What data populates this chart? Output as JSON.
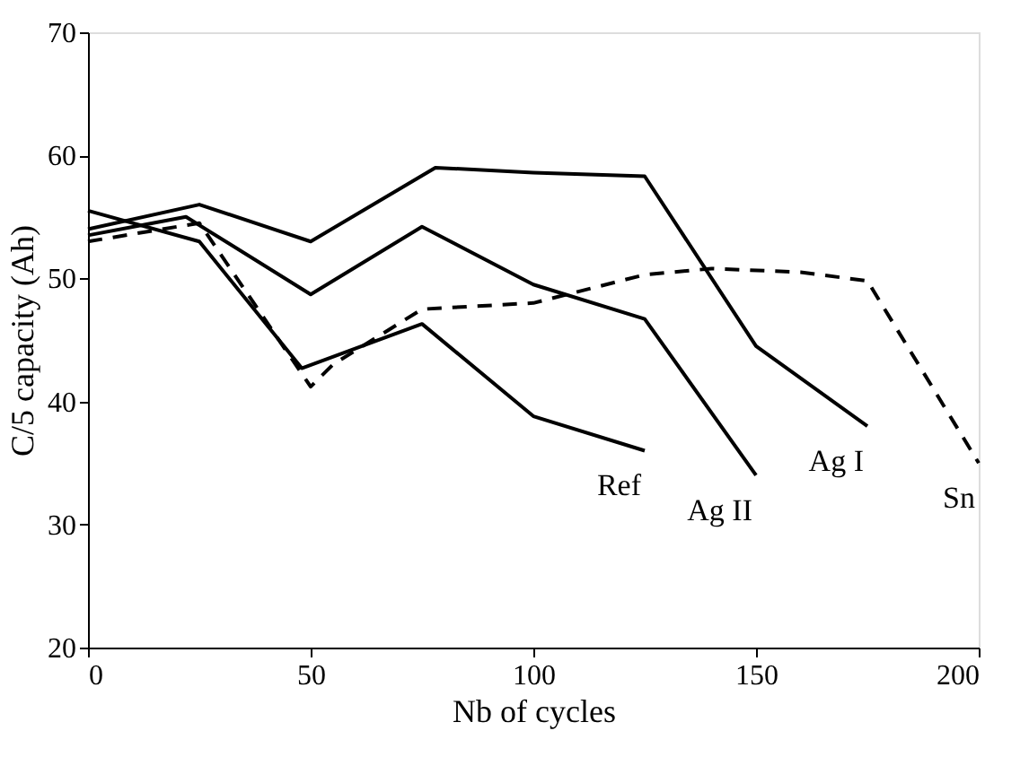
{
  "chart_data": {
    "type": "line",
    "xlabel": "Nb of cycles",
    "ylabel": "C/5 capacity (Ah)",
    "xlim": [
      0,
      200
    ],
    "xticks": [
      0,
      50,
      100,
      150,
      200
    ],
    "ylim": [
      20,
      70
    ],
    "yticks": [
      20,
      30,
      40,
      50,
      60,
      70
    ],
    "grid": false,
    "marker": "none",
    "series": [
      {
        "name": "Ref",
        "color": "#000000",
        "line_style": "solid",
        "x": [
          0,
          25,
          48,
          75,
          100,
          125
        ],
        "values": [
          55.5,
          53,
          42.7,
          46.3,
          38.8,
          36
        ]
      },
      {
        "name": "Ag II",
        "color": "#000000",
        "line_style": "solid",
        "x": [
          0,
          22,
          50,
          75,
          100,
          125,
          150
        ],
        "values": [
          53.5,
          55,
          48.7,
          54.2,
          49.5,
          46.7,
          34
        ]
      },
      {
        "name": "Ag I",
        "color": "#000000",
        "line_style": "solid",
        "x": [
          0,
          25,
          50,
          78,
          100,
          125,
          150,
          175
        ],
        "values": [
          54,
          56,
          53,
          59,
          58.6,
          58.3,
          44.5,
          38
        ]
      },
      {
        "name": "Sn",
        "color": "#000000",
        "line_style": "dashed",
        "x": [
          0,
          25,
          50,
          55,
          75,
          100,
          125,
          140,
          160,
          175,
          200
        ],
        "values": [
          53,
          54.5,
          41.2,
          43,
          47.5,
          48,
          50.3,
          50.8,
          50.5,
          49.8,
          35
        ]
      }
    ]
  }
}
